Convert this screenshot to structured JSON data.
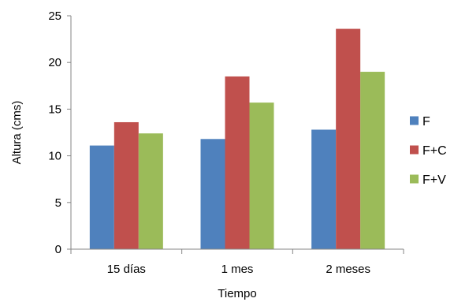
{
  "chart_data": {
    "type": "bar",
    "title": "",
    "xlabel": "Tiempo",
    "ylabel": "Altura (cms)",
    "ylim": [
      0,
      25
    ],
    "yticks": [
      0,
      5,
      10,
      15,
      20,
      25
    ],
    "grid": false,
    "legend_position": "right",
    "categories": [
      "15 días",
      "1 mes",
      "2 meses"
    ],
    "series": [
      {
        "name": "F",
        "color": "#4F81BD",
        "values": [
          11.1,
          11.8,
          12.8
        ]
      },
      {
        "name": "F+C",
        "color": "#C0504D",
        "values": [
          13.6,
          18.5,
          23.6
        ]
      },
      {
        "name": "F+V",
        "color": "#9BBB59",
        "values": [
          12.4,
          15.7,
          19.0
        ]
      }
    ]
  }
}
